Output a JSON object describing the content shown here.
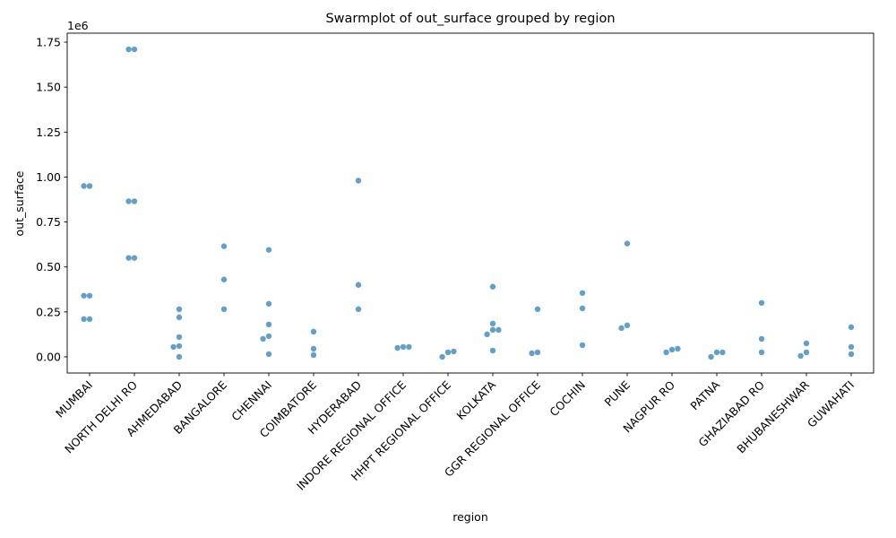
{
  "chart_data": {
    "type": "scatter",
    "subtype": "swarm",
    "title": "Swarmplot of out_surface grouped by region",
    "xlabel": "region",
    "ylabel": "out_surface",
    "y_offset_text": "1e6",
    "ylim": [
      -90000,
      1800000
    ],
    "yticks": [
      0,
      250000,
      500000,
      750000,
      1000000,
      1250000,
      1500000,
      1750000
    ],
    "ytick_labels": [
      "0.00",
      "0.25",
      "0.50",
      "0.75",
      "1.00",
      "1.25",
      "1.50",
      "1.75"
    ],
    "grid": false,
    "legend": "none",
    "point_color": "#1f77b4",
    "categories": [
      "MUMBAI",
      "NORTH DELHI RO",
      "AHMEDABAD",
      "BANGALORE",
      "CHENNAI",
      "COIMBATORE",
      "HYDERABAD",
      "INDORE REGIONAL OFFICE",
      "HHPT REGIONAL OFFICE",
      "KOLKATA",
      "GGR REGIONAL OFFICE",
      "COCHIN",
      "PUNE",
      "NAGPUR RO",
      "PATNA",
      "GHAZIABAD RO",
      "BHUBANESHWAR",
      "GUWAHATI"
    ],
    "groups": [
      {
        "category": "MUMBAI",
        "values": [
          950000,
          950000,
          340000,
          340000,
          210000,
          210000
        ]
      },
      {
        "category": "NORTH DELHI RO",
        "values": [
          1710000,
          1710000,
          865000,
          865000,
          550000,
          550000
        ]
      },
      {
        "category": "AHMEDABAD",
        "values": [
          265000,
          220000,
          110000,
          60000,
          55000,
          0
        ]
      },
      {
        "category": "BANGALORE",
        "values": [
          615000,
          430000,
          265000
        ]
      },
      {
        "category": "CHENNAI",
        "values": [
          595000,
          295000,
          180000,
          115000,
          100000,
          15000
        ]
      },
      {
        "category": "COIMBATORE",
        "values": [
          140000,
          45000,
          10000
        ]
      },
      {
        "category": "HYDERABAD",
        "values": [
          980000,
          400000,
          265000
        ]
      },
      {
        "category": "INDORE REGIONAL OFFICE",
        "values": [
          55000,
          50000,
          55000
        ]
      },
      {
        "category": "HHPT REGIONAL OFFICE",
        "values": [
          25000,
          0,
          30000
        ]
      },
      {
        "category": "KOLKATA",
        "values": [
          390000,
          185000,
          150000,
          125000,
          150000,
          35000
        ]
      },
      {
        "category": "GGR REGIONAL OFFICE",
        "values": [
          265000,
          25000,
          20000
        ]
      },
      {
        "category": "COCHIN",
        "values": [
          355000,
          270000,
          65000
        ]
      },
      {
        "category": "PUNE",
        "values": [
          630000,
          175000,
          160000
        ]
      },
      {
        "category": "NAGPUR RO",
        "values": [
          40000,
          25000,
          45000
        ]
      },
      {
        "category": "PATNA",
        "values": [
          25000,
          0,
          25000
        ]
      },
      {
        "category": "GHAZIABAD RO",
        "values": [
          300000,
          100000,
          25000
        ]
      },
      {
        "category": "BHUBANESHWAR",
        "values": [
          75000,
          25000,
          5000
        ]
      },
      {
        "category": "GUWAHATI",
        "values": [
          165000,
          55000,
          15000
        ]
      }
    ]
  }
}
